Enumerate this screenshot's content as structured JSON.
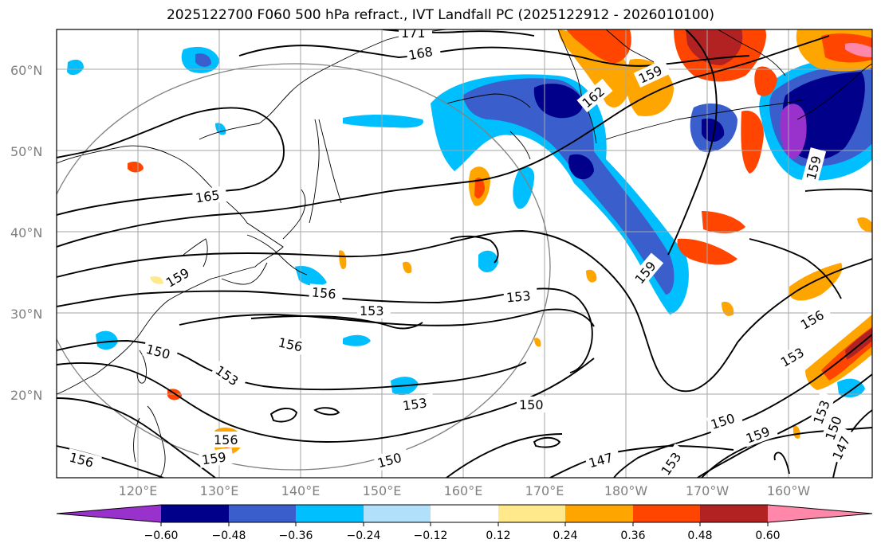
{
  "title": "2025122700 F060 500 hPa refract., IVT Landfall PC (2025122912 - 2026010100)",
  "map": {
    "lat_labels": [
      "60°N",
      "50°N",
      "40°N",
      "30°N",
      "20°N"
    ],
    "lon_labels": [
      "120°E",
      "130°E",
      "140°E",
      "150°E",
      "160°E",
      "170°E",
      "180°W",
      "170°W",
      "160°W"
    ],
    "contour_labels": [
      "171",
      "168",
      "165",
      "162",
      "159",
      "159",
      "159",
      "159",
      "156",
      "156",
      "156",
      "156",
      "156",
      "153",
      "153",
      "153",
      "153",
      "153",
      "153",
      "150",
      "150",
      "150",
      "150",
      "150",
      "147",
      "147",
      "159",
      "153",
      "159"
    ]
  },
  "colorbar": {
    "colors": [
      "#9932cc",
      "#00008b",
      "#3a5fcd",
      "#00bfff",
      "#b0e0fa",
      "#ffffff",
      "#ffe98a",
      "#ffa500",
      "#ff4500",
      "#b22222",
      "#ff88aa"
    ],
    "tick_labels": [
      "−0.60",
      "−0.48",
      "−0.36",
      "−0.24",
      "−0.12",
      "0.12",
      "0.24",
      "0.36",
      "0.48",
      "0.60"
    ]
  }
}
